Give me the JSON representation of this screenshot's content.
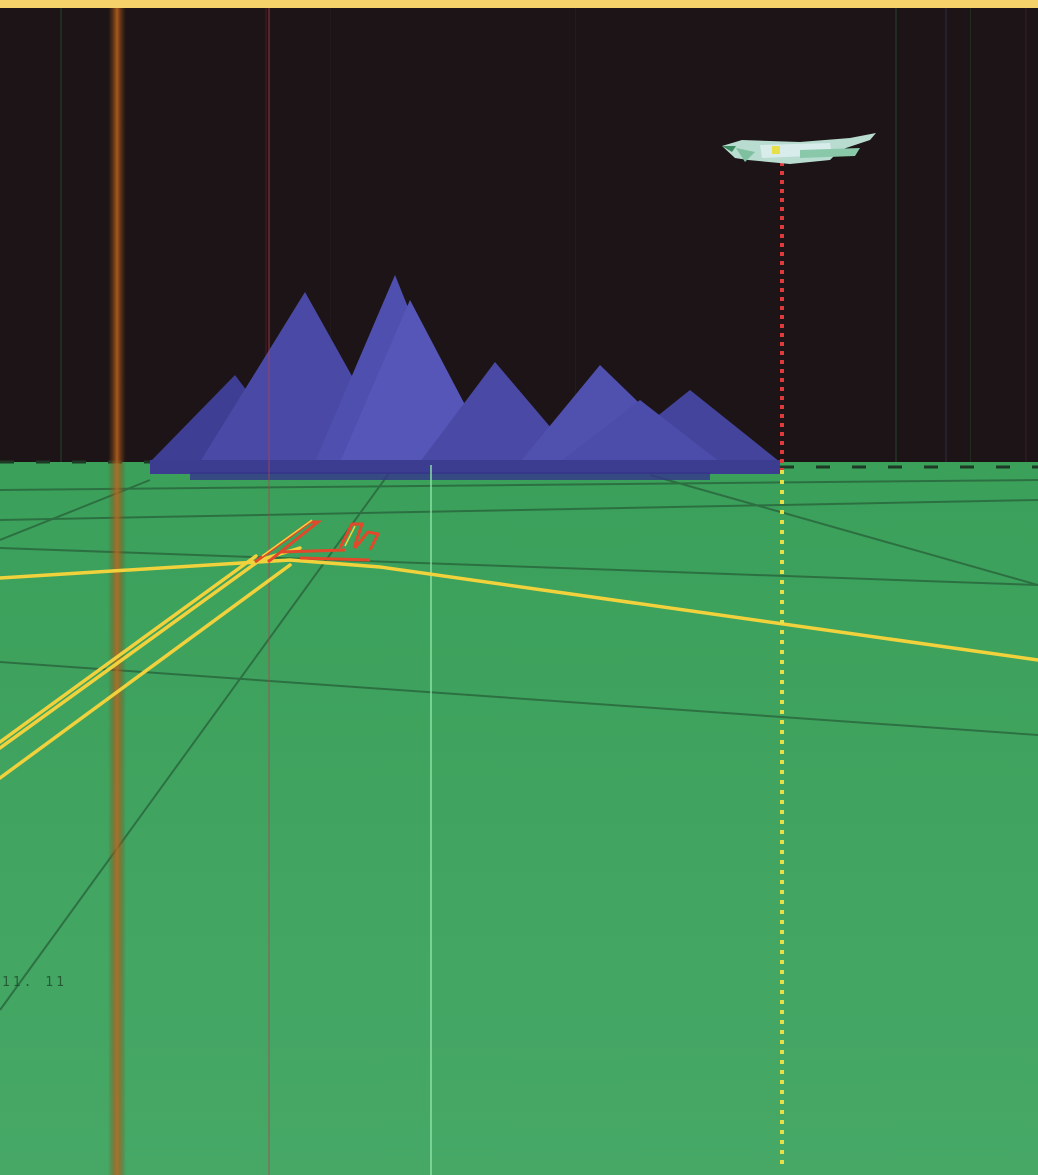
{
  "scene": {
    "view": "flight-simulator-external-view",
    "objects": [
      "jet-aircraft",
      "mountain-range",
      "runway",
      "ground-grid",
      "altitude-drop-line"
    ]
  },
  "hud": {
    "readout": "11. 11"
  },
  "colors": {
    "sky": "#1c1416",
    "ground": "#3fa05c",
    "ground_grid": "#2b6b40",
    "mountains": "#4a4aa6",
    "mountains_shade": "#5c5cc0",
    "runway_outline": "#f2d23c",
    "runway_marks": "#e2482a",
    "drop_line": "#e8e048",
    "aircraft_body": "#b8dcd0",
    "aircraft_trim": "#3c8a60",
    "top_border": "#f6d36a"
  },
  "icons": {
    "aircraft": "jet-icon",
    "mountains": "mountain-icon"
  }
}
